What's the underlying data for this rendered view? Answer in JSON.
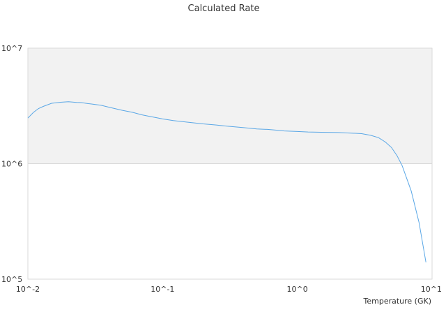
{
  "chart_data": {
    "type": "line",
    "title": "Calculated Rate",
    "xlabel": "Temperature (GK)",
    "ylabel": "",
    "xscale": "log",
    "yscale": "log",
    "xlim": [
      0.01,
      10
    ],
    "ylim": [
      100000,
      10000000
    ],
    "x_tick_labels": [
      "10^-2",
      "10^-1",
      "10^0",
      "10^1"
    ],
    "y_tick_labels": [
      "10^5",
      "10^6",
      "10^7"
    ],
    "grid": false,
    "shaded_band": {
      "y_from": 1000000,
      "y_to": 10000000,
      "color": "#f2f2f2"
    },
    "line_color": "#5aa7e6",
    "series": [
      {
        "x": [
          0.01,
          0.011,
          0.012,
          0.013,
          0.015,
          0.0175,
          0.02,
          0.023,
          0.025,
          0.028,
          0.03,
          0.035,
          0.04,
          0.05,
          0.06,
          0.07,
          0.08,
          0.09,
          0.1,
          0.12,
          0.15,
          0.2,
          0.25,
          0.3,
          0.4,
          0.5,
          0.6,
          0.7,
          0.8,
          1.0,
          1.2,
          1.5,
          2.0,
          2.5,
          3.0,
          3.5,
          4.0,
          4.5,
          5.0,
          5.5,
          6.0,
          7.0,
          8.0,
          9.0
        ],
        "y": [
          2480000,
          2780000,
          3000000,
          3130000,
          3330000,
          3400000,
          3440000,
          3390000,
          3380000,
          3310000,
          3280000,
          3200000,
          3080000,
          2900000,
          2780000,
          2650000,
          2570000,
          2500000,
          2440000,
          2360000,
          2290000,
          2210000,
          2160000,
          2110000,
          2050000,
          2000000,
          1980000,
          1950000,
          1920000,
          1900000,
          1880000,
          1870000,
          1860000,
          1840000,
          1820000,
          1760000,
          1680000,
          1540000,
          1380000,
          1170000,
          960000,
          580000,
          310000,
          140000
        ]
      }
    ]
  }
}
